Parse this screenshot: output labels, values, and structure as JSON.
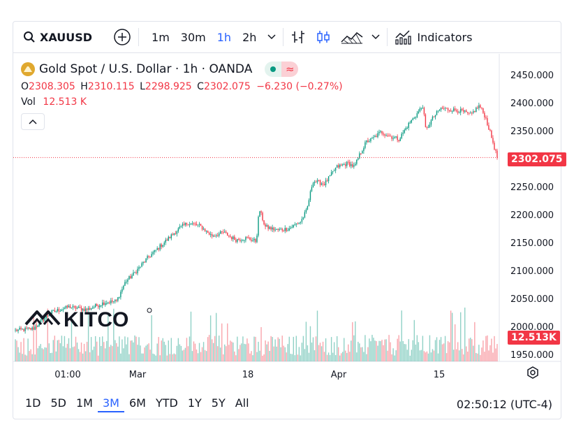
{
  "toolbar": {
    "symbol": "XAUUSD",
    "intervals": [
      "1m",
      "30m",
      "1h",
      "2h"
    ],
    "active_interval": "1h",
    "indicators_label": "Indicators"
  },
  "legend": {
    "title": "Gold Spot / U.S. Dollar · 1h · OANDA",
    "open_label": "O",
    "open": "2308.305",
    "high_label": "H",
    "high": "2310.115",
    "low_label": "L",
    "low": "2298.925",
    "close_label": "C",
    "close": "2302.075",
    "change": "−6.230 (−0.27%)",
    "vol_label": "Vol",
    "vol": "12.513 K"
  },
  "watermark": "KITCO",
  "price_badge": "2302.075",
  "volume_badge": "12.513K",
  "bottom": {
    "ranges": [
      "1D",
      "5D",
      "1M",
      "3M",
      "6M",
      "YTD",
      "1Y",
      "5Y",
      "All"
    ],
    "active_range": "3M",
    "clock": "02:50:12 (UTC-4)"
  },
  "colors": {
    "up": "#089981",
    "down": "#f23645",
    "accent": "#2962ff"
  },
  "chart_data": {
    "type": "candlestick",
    "y_ticks": [
      "2450.000",
      "2400.000",
      "2350.000",
      "2300.000",
      "2250.000",
      "2200.000",
      "2150.000",
      "2100.000",
      "2050.000",
      "2000.000",
      "1950.000"
    ],
    "ylim": [
      1937,
      2482
    ],
    "x_ticks": [
      "01:00",
      "Mar",
      "18",
      "Apr",
      "15"
    ],
    "last_price": 2302.075,
    "approx_close_series": [
      {
        "x": 0,
        "y": 1993
      },
      {
        "x": 6,
        "y": 1996
      },
      {
        "x": 12,
        "y": 2025
      },
      {
        "x": 18,
        "y": 2035
      },
      {
        "x": 24,
        "y": 2030
      },
      {
        "x": 30,
        "y": 2043
      },
      {
        "x": 34,
        "y": 2045
      },
      {
        "x": 37,
        "y": 2080
      },
      {
        "x": 40,
        "y": 2095
      },
      {
        "x": 44,
        "y": 2120
      },
      {
        "x": 48,
        "y": 2140
      },
      {
        "x": 52,
        "y": 2160
      },
      {
        "x": 55,
        "y": 2175
      },
      {
        "x": 58,
        "y": 2185
      },
      {
        "x": 62,
        "y": 2180
      },
      {
        "x": 66,
        "y": 2162
      },
      {
        "x": 70,
        "y": 2168
      },
      {
        "x": 74,
        "y": 2155
      },
      {
        "x": 78,
        "y": 2158
      },
      {
        "x": 81,
        "y": 2152
      },
      {
        "x": 82,
        "y": 2210
      },
      {
        "x": 84,
        "y": 2178
      },
      {
        "x": 88,
        "y": 2172
      },
      {
        "x": 92,
        "y": 2175
      },
      {
        "x": 96,
        "y": 2188
      },
      {
        "x": 98,
        "y": 2208
      },
      {
        "x": 100,
        "y": 2260
      },
      {
        "x": 104,
        "y": 2255
      },
      {
        "x": 108,
        "y": 2285
      },
      {
        "x": 112,
        "y": 2292
      },
      {
        "x": 114,
        "y": 2285
      },
      {
        "x": 116,
        "y": 2310
      },
      {
        "x": 118,
        "y": 2330
      },
      {
        "x": 120,
        "y": 2335
      },
      {
        "x": 123,
        "y": 2348
      },
      {
        "x": 126,
        "y": 2340
      },
      {
        "x": 129,
        "y": 2335
      },
      {
        "x": 132,
        "y": 2360
      },
      {
        "x": 135,
        "y": 2380
      },
      {
        "x": 137,
        "y": 2395
      },
      {
        "x": 138,
        "y": 2350
      },
      {
        "x": 140,
        "y": 2370
      },
      {
        "x": 143,
        "y": 2390
      },
      {
        "x": 146,
        "y": 2388
      },
      {
        "x": 150,
        "y": 2385
      },
      {
        "x": 153,
        "y": 2378
      },
      {
        "x": 156,
        "y": 2395
      },
      {
        "x": 158,
        "y": 2375
      },
      {
        "x": 160,
        "y": 2340
      },
      {
        "x": 162,
        "y": 2302
      }
    ]
  }
}
